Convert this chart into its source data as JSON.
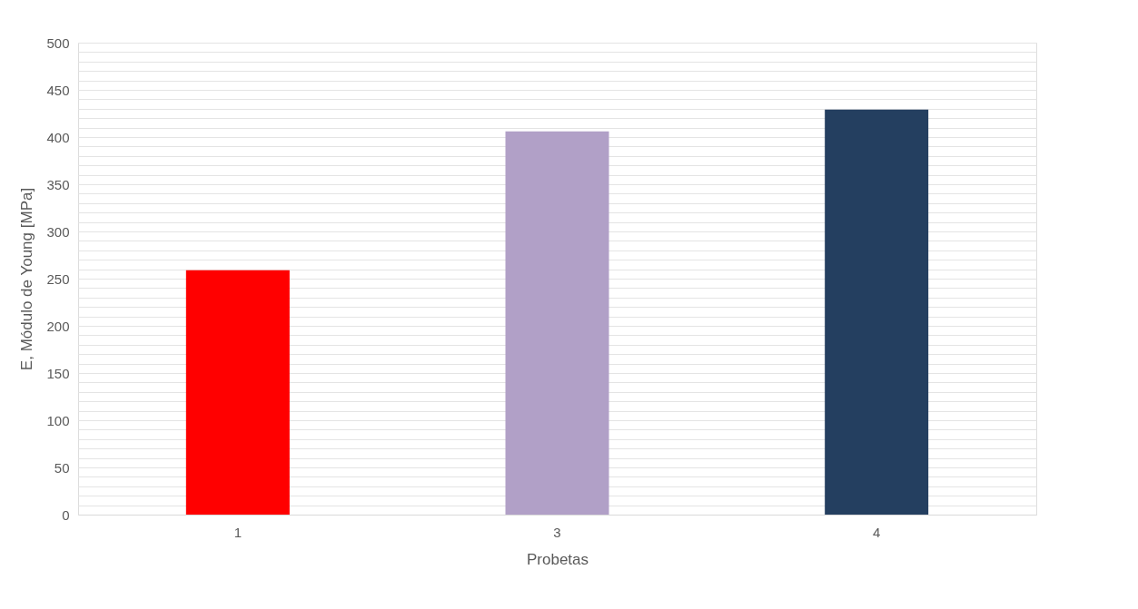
{
  "chart_data": {
    "type": "bar",
    "xlabel": "Probetas",
    "ylabel": "E, Módulo de Young [MPa]",
    "categories": [
      "1",
      "3",
      "4"
    ],
    "values": [
      259,
      406,
      429
    ],
    "colors": [
      "#ff0000",
      "#b1a0c7",
      "#243f60"
    ],
    "ylim": [
      0,
      500
    ],
    "yticks": [
      0,
      {
        "value": 10,
        "label": null
      },
      {
        "value": 20,
        "label": null
      },
      {
        "value": 30,
        "label": null
      },
      {
        "value": 40,
        "label": null
      },
      50,
      {
        "value": 60,
        "label": null
      },
      {
        "value": 70,
        "label": null
      },
      {
        "value": 80,
        "label": null
      },
      {
        "value": 90,
        "label": null
      },
      100,
      {
        "value": 110,
        "label": null
      },
      {
        "value": 120,
        "label": null
      },
      {
        "value": 130,
        "label": null
      },
      {
        "value": 140,
        "label": null
      },
      150,
      {
        "value": 160,
        "label": null
      },
      {
        "value": 170,
        "label": null
      },
      {
        "value": 180,
        "label": null
      },
      {
        "value": 190,
        "label": null
      },
      200,
      {
        "value": 210,
        "label": null
      },
      {
        "value": 220,
        "label": null
      },
      {
        "value": 230,
        "label": null
      },
      {
        "value": 240,
        "label": null
      },
      250,
      {
        "value": 260,
        "label": null
      },
      {
        "value": 270,
        "label": null
      },
      {
        "value": 280,
        "label": null
      },
      {
        "value": 290,
        "label": null
      },
      300,
      {
        "value": 310,
        "label": null
      },
      {
        "value": 320,
        "label": null
      },
      {
        "value": 330,
        "label": null
      },
      {
        "value": 340,
        "label": null
      },
      350,
      {
        "value": 360,
        "label": null
      },
      {
        "value": 370,
        "label": null
      },
      {
        "value": 380,
        "label": null
      },
      {
        "value": 390,
        "label": null
      },
      400,
      {
        "value": 410,
        "label": null
      },
      {
        "value": 420,
        "label": null
      },
      {
        "value": 430,
        "label": null
      },
      {
        "value": 440,
        "label": null
      },
      450,
      {
        "value": 460,
        "label": null
      },
      {
        "value": 470,
        "label": null
      },
      {
        "value": 480,
        "label": null
      },
      {
        "value": 490,
        "label": null
      },
      500
    ],
    "grid": "y"
  }
}
